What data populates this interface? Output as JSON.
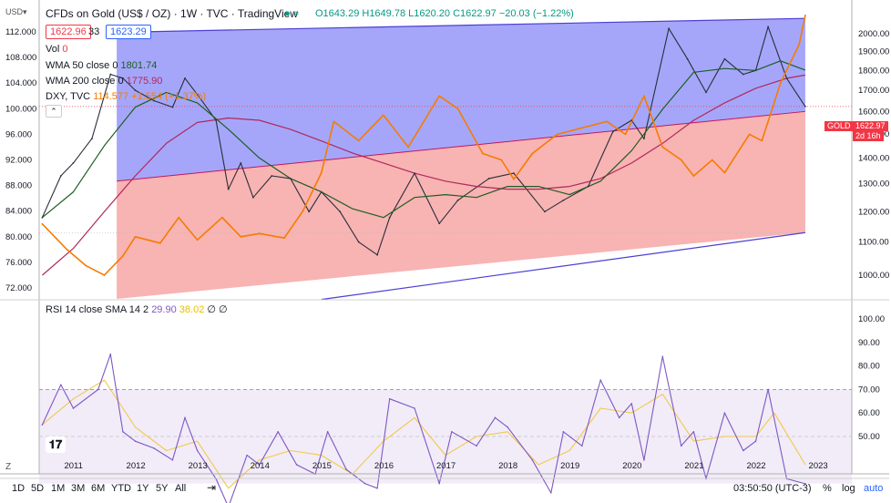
{
  "header": {
    "title": "CFDs on Gold (US$ / OZ) · 1W · TVC · TradingView",
    "ohlc": "O1643.29 H1649.78 L1620.20 C1622.97 −20.03 (−1.22%)",
    "bid": "1622.96",
    "spread": "33",
    "ask": "1623.29"
  },
  "indicators": {
    "vol_label": "Vol",
    "vol_value": "0",
    "wma50_label": "WMA 50 close 0",
    "wma50_value": "1801.74",
    "wma200_label": "WMA 200 close 0",
    "wma200_value": "1775.90",
    "dxy_label": "DXY, TVC",
    "dxy_value": "114.577 +1.554 (+1.37%)",
    "rsi_label": "RSI 14 close SMA 14 2",
    "rsi_value": "29.90",
    "rsi_sma": "38.02",
    "rsi_extra": "∅ ∅"
  },
  "usd_label": "USD▾",
  "current_price": {
    "symbol": "GOLD",
    "price": "1622.97",
    "countdown": "2d 16h"
  },
  "timeframes": [
    "1D",
    "5D",
    "1M",
    "3M",
    "6M",
    "YTD",
    "1Y",
    "5Y",
    "All"
  ],
  "bottom_bar": {
    "clock": "03:50:50 (UTC-3)",
    "pct": "%",
    "log": "log",
    "auto": "auto"
  },
  "colors": {
    "up_channel": "#5b5cf5",
    "low_channel": "#f58b8b",
    "rsi_line": "#7e57c2",
    "rsi_sma": "#f7d96a",
    "dxy": "#f57c00",
    "wma50": "#1b5e20",
    "wma200": "#b2275a"
  },
  "chart_data": {
    "type": "line",
    "left_axis_dxy": [
      112,
      108,
      104,
      100,
      96,
      92,
      88,
      84,
      80,
      76,
      72
    ],
    "right_axis_gold": [
      2000,
      1900,
      1800,
      1700,
      1600,
      1500,
      1400,
      1300,
      1200,
      1100,
      1000
    ],
    "rsi_axis": [
      100,
      90,
      80,
      70,
      60,
      50
    ],
    "x_labels": [
      "2011",
      "2012",
      "2013",
      "2014",
      "2015",
      "2016",
      "2017",
      "2018",
      "2019",
      "2020",
      "2021",
      "2022",
      "2023"
    ],
    "gold": [
      [
        2010.5,
        1180
      ],
      [
        2010.8,
        1330
      ],
      [
        2011.0,
        1380
      ],
      [
        2011.3,
        1480
      ],
      [
        2011.6,
        1780
      ],
      [
        2011.8,
        1760
      ],
      [
        2012.0,
        1700
      ],
      [
        2012.3,
        1650
      ],
      [
        2012.6,
        1620
      ],
      [
        2012.8,
        1760
      ],
      [
        2013.0,
        1680
      ],
      [
        2013.3,
        1560
      ],
      [
        2013.5,
        1280
      ],
      [
        2013.7,
        1380
      ],
      [
        2013.9,
        1250
      ],
      [
        2014.2,
        1330
      ],
      [
        2014.5,
        1320
      ],
      [
        2014.8,
        1200
      ],
      [
        2015.0,
        1270
      ],
      [
        2015.3,
        1200
      ],
      [
        2015.6,
        1100
      ],
      [
        2015.9,
        1060
      ],
      [
        2016.1,
        1180
      ],
      [
        2016.5,
        1340
      ],
      [
        2016.9,
        1160
      ],
      [
        2017.2,
        1240
      ],
      [
        2017.7,
        1320
      ],
      [
        2018.1,
        1340
      ],
      [
        2018.6,
        1200
      ],
      [
        2018.9,
        1240
      ],
      [
        2019.3,
        1290
      ],
      [
        2019.7,
        1510
      ],
      [
        2020.0,
        1560
      ],
      [
        2020.2,
        1480
      ],
      [
        2020.6,
        2030
      ],
      [
        2020.9,
        1860
      ],
      [
        2021.2,
        1690
      ],
      [
        2021.5,
        1860
      ],
      [
        2021.8,
        1780
      ],
      [
        2022.0,
        1800
      ],
      [
        2022.2,
        2040
      ],
      [
        2022.5,
        1760
      ],
      [
        2022.8,
        1622.97
      ]
    ],
    "wma50": [
      [
        2010.5,
        1180
      ],
      [
        2011.0,
        1270
      ],
      [
        2011.5,
        1450
      ],
      [
        2012.0,
        1620
      ],
      [
        2012.5,
        1690
      ],
      [
        2013.0,
        1640
      ],
      [
        2013.5,
        1520
      ],
      [
        2014.0,
        1400
      ],
      [
        2014.5,
        1320
      ],
      [
        2015.0,
        1270
      ],
      [
        2015.5,
        1210
      ],
      [
        2016.0,
        1180
      ],
      [
        2016.5,
        1250
      ],
      [
        2017.0,
        1260
      ],
      [
        2017.5,
        1250
      ],
      [
        2018.0,
        1290
      ],
      [
        2018.5,
        1290
      ],
      [
        2019.0,
        1260
      ],
      [
        2019.5,
        1310
      ],
      [
        2020.0,
        1430
      ],
      [
        2020.5,
        1610
      ],
      [
        2021.0,
        1790
      ],
      [
        2021.5,
        1810
      ],
      [
        2022.0,
        1800
      ],
      [
        2022.4,
        1850
      ],
      [
        2022.8,
        1801.74
      ]
    ],
    "wma200": [
      [
        2010.5,
        1000
      ],
      [
        2011.0,
        1080
      ],
      [
        2011.5,
        1200
      ],
      [
        2012.0,
        1330
      ],
      [
        2012.5,
        1460
      ],
      [
        2013.0,
        1550
      ],
      [
        2013.5,
        1570
      ],
      [
        2014.0,
        1560
      ],
      [
        2014.5,
        1520
      ],
      [
        2015.0,
        1470
      ],
      [
        2015.5,
        1420
      ],
      [
        2016.0,
        1380
      ],
      [
        2016.5,
        1340
      ],
      [
        2017.0,
        1310
      ],
      [
        2017.5,
        1290
      ],
      [
        2018.0,
        1280
      ],
      [
        2018.5,
        1280
      ],
      [
        2019.0,
        1290
      ],
      [
        2019.5,
        1320
      ],
      [
        2020.0,
        1380
      ],
      [
        2020.5,
        1460
      ],
      [
        2021.0,
        1560
      ],
      [
        2021.5,
        1640
      ],
      [
        2022.0,
        1710
      ],
      [
        2022.5,
        1760
      ],
      [
        2022.8,
        1775.9
      ]
    ],
    "dxy": [
      [
        2010.5,
        82
      ],
      [
        2010.9,
        78
      ],
      [
        2011.2,
        75.5
      ],
      [
        2011.5,
        74
      ],
      [
        2011.8,
        77
      ],
      [
        2012.0,
        80
      ],
      [
        2012.4,
        79
      ],
      [
        2012.7,
        83
      ],
      [
        2013.0,
        79.5
      ],
      [
        2013.4,
        83
      ],
      [
        2013.7,
        80
      ],
      [
        2014.0,
        80.5
      ],
      [
        2014.4,
        79.8
      ],
      [
        2014.7,
        84
      ],
      [
        2015.0,
        90
      ],
      [
        2015.2,
        98
      ],
      [
        2015.6,
        95
      ],
      [
        2016.0,
        99
      ],
      [
        2016.4,
        94
      ],
      [
        2016.9,
        102
      ],
      [
        2017.2,
        100
      ],
      [
        2017.6,
        93
      ],
      [
        2017.9,
        92
      ],
      [
        2018.1,
        89
      ],
      [
        2018.4,
        93
      ],
      [
        2018.8,
        96
      ],
      [
        2019.2,
        97
      ],
      [
        2019.6,
        98
      ],
      [
        2019.9,
        96
      ],
      [
        2020.2,
        102
      ],
      [
        2020.5,
        94
      ],
      [
        2020.8,
        92
      ],
      [
        2021.0,
        89.5
      ],
      [
        2021.3,
        92
      ],
      [
        2021.5,
        90
      ],
      [
        2021.9,
        96
      ],
      [
        2022.1,
        95
      ],
      [
        2022.4,
        104
      ],
      [
        2022.7,
        110
      ],
      [
        2022.8,
        114.577
      ]
    ],
    "rsi": [
      [
        2010.5,
        55
      ],
      [
        2010.8,
        72
      ],
      [
        2011.0,
        62
      ],
      [
        2011.4,
        70
      ],
      [
        2011.6,
        85
      ],
      [
        2011.8,
        52
      ],
      [
        2012.0,
        48
      ],
      [
        2012.3,
        45
      ],
      [
        2012.6,
        40
      ],
      [
        2012.8,
        58
      ],
      [
        2013.0,
        44
      ],
      [
        2013.3,
        32
      ],
      [
        2013.5,
        20
      ],
      [
        2013.8,
        42
      ],
      [
        2014.0,
        38
      ],
      [
        2014.3,
        52
      ],
      [
        2014.6,
        38
      ],
      [
        2014.9,
        34
      ],
      [
        2015.1,
        52
      ],
      [
        2015.4,
        36
      ],
      [
        2015.7,
        30
      ],
      [
        2015.9,
        28
      ],
      [
        2016.1,
        66
      ],
      [
        2016.5,
        62
      ],
      [
        2016.9,
        30
      ],
      [
        2017.1,
        52
      ],
      [
        2017.5,
        46
      ],
      [
        2017.8,
        58
      ],
      [
        2018.0,
        54
      ],
      [
        2018.4,
        40
      ],
      [
        2018.7,
        26
      ],
      [
        2018.9,
        52
      ],
      [
        2019.2,
        46
      ],
      [
        2019.5,
        74
      ],
      [
        2019.8,
        58
      ],
      [
        2020.0,
        64
      ],
      [
        2020.2,
        40
      ],
      [
        2020.5,
        84
      ],
      [
        2020.8,
        46
      ],
      [
        2021.0,
        52
      ],
      [
        2021.2,
        32
      ],
      [
        2021.5,
        60
      ],
      [
        2021.8,
        44
      ],
      [
        2022.0,
        48
      ],
      [
        2022.2,
        70
      ],
      [
        2022.5,
        32
      ],
      [
        2022.8,
        29.9
      ]
    ],
    "rsi_sma": [
      [
        2010.5,
        55
      ],
      [
        2011.0,
        66
      ],
      [
        2011.5,
        74
      ],
      [
        2012.0,
        54
      ],
      [
        2012.5,
        44
      ],
      [
        2013.0,
        48
      ],
      [
        2013.5,
        28
      ],
      [
        2014.0,
        40
      ],
      [
        2014.5,
        44
      ],
      [
        2015.0,
        42
      ],
      [
        2015.5,
        34
      ],
      [
        2016.0,
        48
      ],
      [
        2016.5,
        58
      ],
      [
        2017.0,
        42
      ],
      [
        2017.5,
        50
      ],
      [
        2018.0,
        52
      ],
      [
        2018.5,
        38
      ],
      [
        2019.0,
        44
      ],
      [
        2019.5,
        62
      ],
      [
        2020.0,
        60
      ],
      [
        2020.5,
        68
      ],
      [
        2021.0,
        48
      ],
      [
        2021.5,
        50
      ],
      [
        2022.0,
        50
      ],
      [
        2022.3,
        60
      ],
      [
        2022.8,
        38.02
      ]
    ],
    "channel": {
      "upper": [
        [
          2011.7,
          2008
        ],
        [
          2022.8,
          2090
        ]
      ],
      "mid": [
        [
          2011.7,
          1310
        ],
        [
          2022.8,
          1600
        ]
      ],
      "lower": [
        [
          2011.7,
          860
        ],
        [
          2022.8,
          1130
        ]
      ]
    }
  }
}
